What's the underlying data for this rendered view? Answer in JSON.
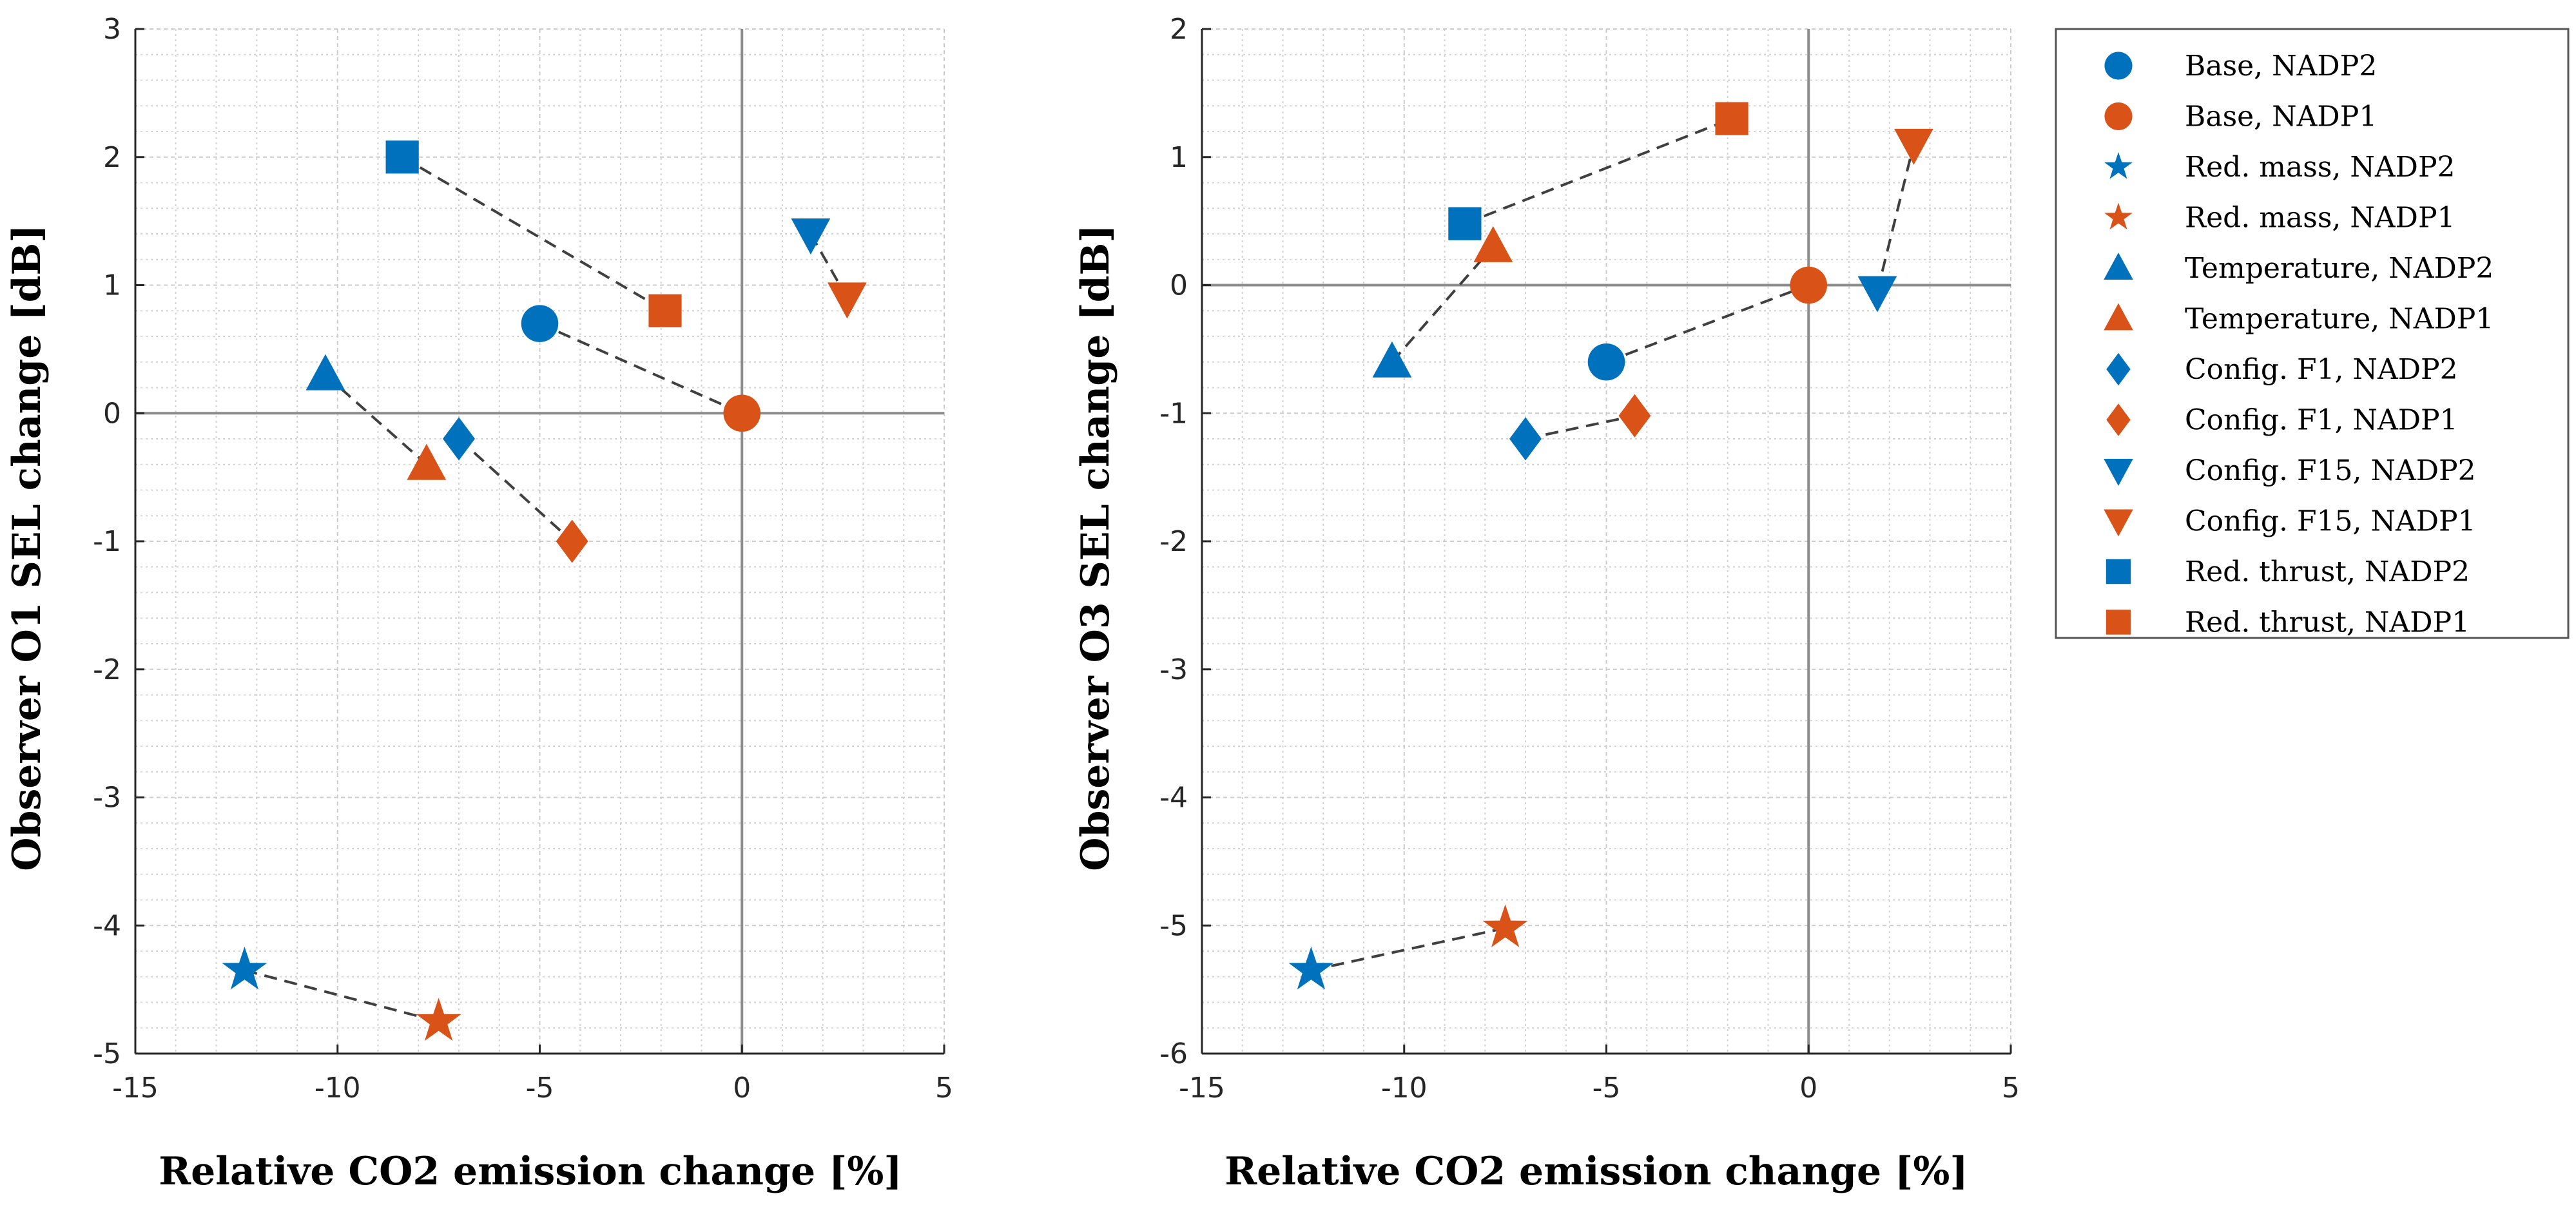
{
  "colors": {
    "NADP2": "#0072bd",
    "NADP1": "#d95319"
  },
  "legend": [
    {
      "label": "Base, NADP2",
      "marker": "circle",
      "group": "NADP2"
    },
    {
      "label": "Base, NADP1",
      "marker": "circle",
      "group": "NADP1"
    },
    {
      "label": "Red. mass, NADP2",
      "marker": "star",
      "group": "NADP2"
    },
    {
      "label": "Red. mass, NADP1",
      "marker": "star",
      "group": "NADP1"
    },
    {
      "label": "Temperature, NADP2",
      "marker": "triangle-up",
      "group": "NADP2"
    },
    {
      "label": "Temperature, NADP1",
      "marker": "triangle-up",
      "group": "NADP1"
    },
    {
      "label": "Config. F1, NADP2",
      "marker": "diamond",
      "group": "NADP2"
    },
    {
      "label": "Config. F1, NADP1",
      "marker": "diamond",
      "group": "NADP1"
    },
    {
      "label": "Config. F15, NADP2",
      "marker": "triangle-down",
      "group": "NADP2"
    },
    {
      "label": "Config. F15, NADP1",
      "marker": "triangle-down",
      "group": "NADP1"
    },
    {
      "label": "Red. thrust, NADP2",
      "marker": "square",
      "group": "NADP2"
    },
    {
      "label": "Red. thrust, NADP1",
      "marker": "square",
      "group": "NADP1"
    }
  ],
  "chart_data": [
    {
      "type": "scatter",
      "xlabel": "Relative CO2 emission change [%]",
      "ylabel": "Observer O1 SEL change [dB]",
      "xlim": [
        -15,
        5
      ],
      "ylim": [
        -5,
        3
      ],
      "xticks": [
        -15,
        -10,
        -5,
        0,
        5
      ],
      "yticks": [
        -5,
        -4,
        -3,
        -2,
        -1,
        0,
        1,
        2,
        3
      ],
      "grid": true,
      "series": [
        {
          "name": "Base, NADP2",
          "x": -5.0,
          "y": 0.7
        },
        {
          "name": "Base, NADP1",
          "x": 0.0,
          "y": 0.0
        },
        {
          "name": "Red. mass, NADP2",
          "x": -12.3,
          "y": -4.35
        },
        {
          "name": "Red. mass, NADP1",
          "x": -7.5,
          "y": -4.75
        },
        {
          "name": "Temperature, NADP2",
          "x": -10.3,
          "y": 0.3
        },
        {
          "name": "Temperature, NADP1",
          "x": -7.8,
          "y": -0.4
        },
        {
          "name": "Config. F1, NADP2",
          "x": -7.0,
          "y": -0.2
        },
        {
          "name": "Config. F1, NADP1",
          "x": -4.2,
          "y": -1.0
        },
        {
          "name": "Config. F15, NADP2",
          "x": 1.7,
          "y": 1.4
        },
        {
          "name": "Config. F15, NADP1",
          "x": 2.6,
          "y": 0.9
        },
        {
          "name": "Red. thrust, NADP2",
          "x": -8.4,
          "y": 2.0
        },
        {
          "name": "Red. thrust, NADP1",
          "x": -1.9,
          "y": 0.8
        }
      ]
    },
    {
      "type": "scatter",
      "xlabel": "Relative CO2 emission change [%]",
      "ylabel": "Observer O3 SEL change [dB]",
      "xlim": [
        -15,
        5
      ],
      "ylim": [
        -6,
        2
      ],
      "xticks": [
        -15,
        -10,
        -5,
        0,
        5
      ],
      "yticks": [
        -6,
        -5,
        -4,
        -3,
        -2,
        -1,
        0,
        1,
        2
      ],
      "grid": true,
      "series": [
        {
          "name": "Base, NADP2",
          "x": -5.0,
          "y": -0.6
        },
        {
          "name": "Base, NADP1",
          "x": 0.0,
          "y": 0.0
        },
        {
          "name": "Red. mass, NADP2",
          "x": -12.3,
          "y": -5.35
        },
        {
          "name": "Red. mass, NADP1",
          "x": -7.5,
          "y": -5.02
        },
        {
          "name": "Temperature, NADP2",
          "x": -10.3,
          "y": -0.6
        },
        {
          "name": "Temperature, NADP1",
          "x": -7.8,
          "y": 0.3
        },
        {
          "name": "Config. F1, NADP2",
          "x": -7.0,
          "y": -1.2
        },
        {
          "name": "Config. F1, NADP1",
          "x": -4.3,
          "y": -1.02
        },
        {
          "name": "Config. F15, NADP2",
          "x": 1.7,
          "y": -0.05
        },
        {
          "name": "Config. F15, NADP1",
          "x": 2.6,
          "y": 1.1
        },
        {
          "name": "Red. thrust, NADP2",
          "x": -8.5,
          "y": 0.48
        },
        {
          "name": "Red. thrust, NADP1",
          "x": -1.9,
          "y": 1.3
        }
      ]
    }
  ]
}
